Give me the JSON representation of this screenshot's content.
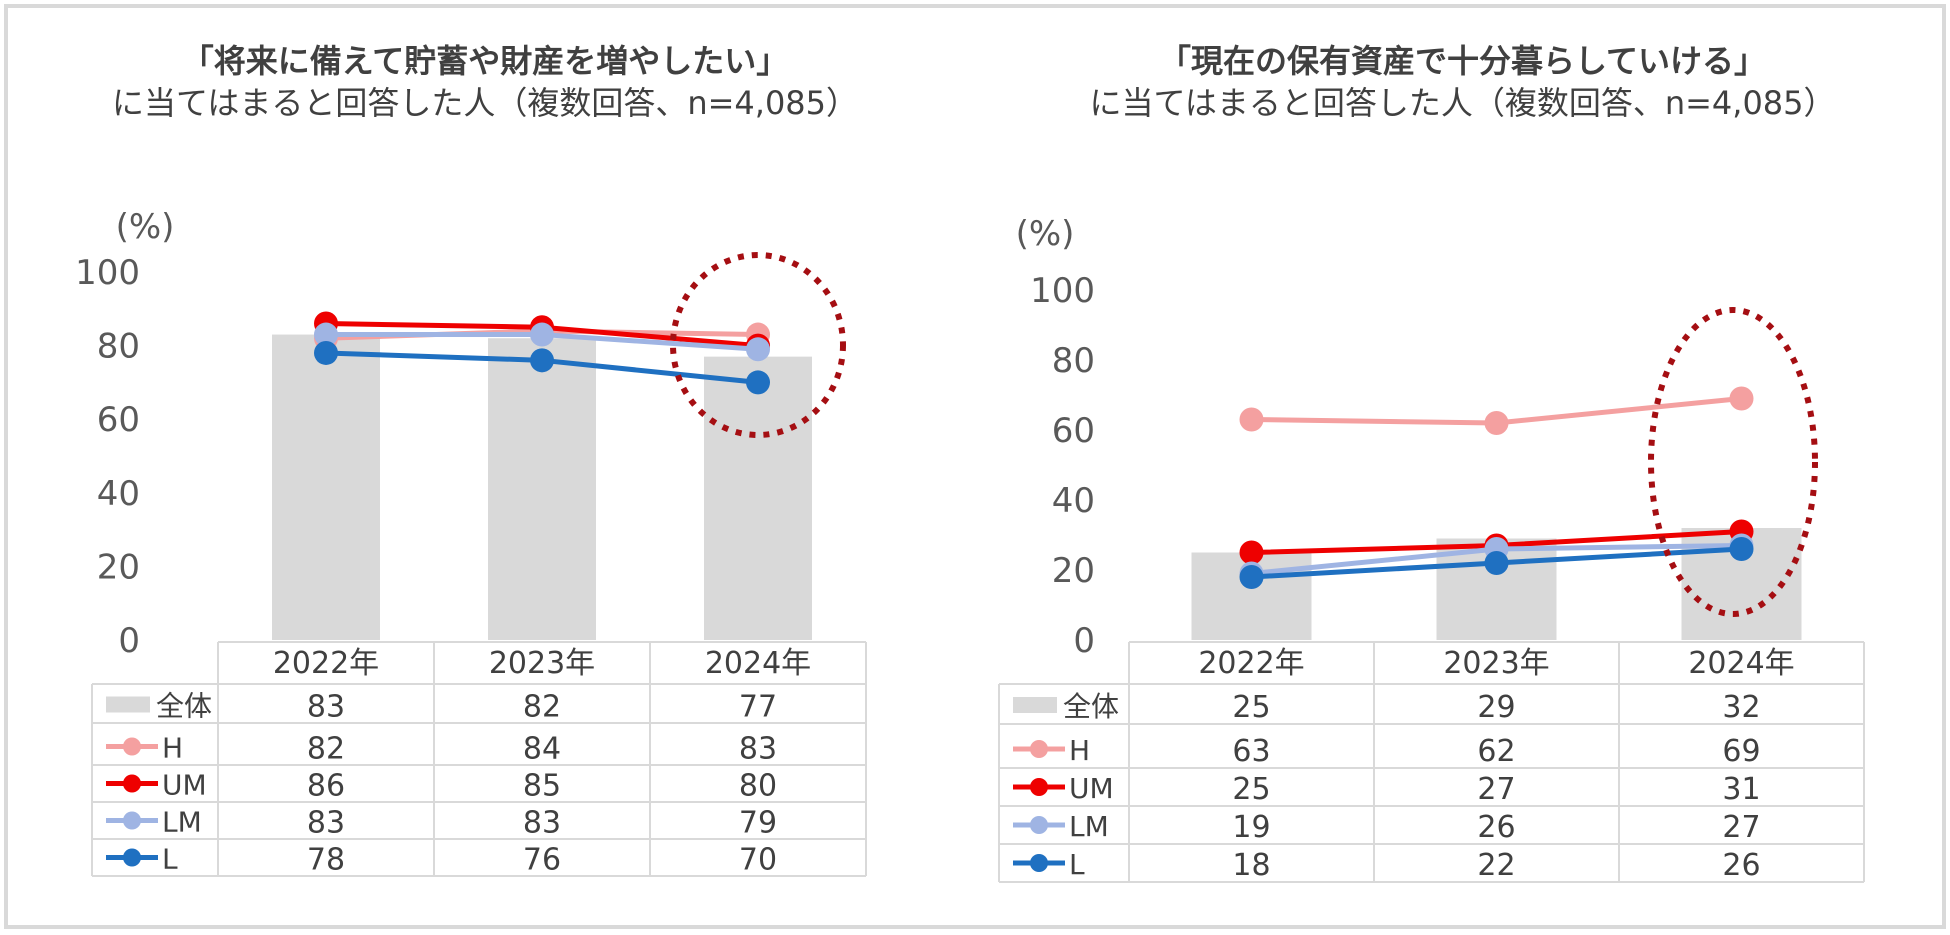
{
  "chart_data": [
    {
      "type": "bar",
      "title": "「将来に備えて貯蓄や財産を増やしたい」",
      "subtitle": "に当てはまると回答した人（複数回答、n=4,085）",
      "ylabel": "(%)",
      "ylim": [
        0,
        100
      ],
      "yticks": [
        "0",
        "20",
        "40",
        "60",
        "80",
        "100"
      ],
      "categories": [
        "2022年",
        "2023年",
        "2024年"
      ],
      "bar_series": {
        "name": "全体",
        "values": [
          83,
          82,
          77
        ],
        "color": "#d9d9d9"
      },
      "line_series": [
        {
          "name": "H",
          "values": [
            82,
            84,
            83
          ],
          "color": "#f4a0a0"
        },
        {
          "name": "UM",
          "values": [
            86,
            85,
            80
          ],
          "color": "#ee0000"
        },
        {
          "name": "LM",
          "values": [
            83,
            83,
            79
          ],
          "color": "#9fb4e3"
        },
        {
          "name": "L",
          "values": [
            78,
            76,
            70
          ],
          "color": "#1f70c1"
        }
      ],
      "table_rows": [
        {
          "name": "全体",
          "values": [
            "83",
            "82",
            "77"
          ]
        },
        {
          "name": "H",
          "values": [
            "82",
            "84",
            "83"
          ]
        },
        {
          "name": "UM",
          "values": [
            "86",
            "85",
            "80"
          ]
        },
        {
          "name": "LM",
          "values": [
            "83",
            "83",
            "79"
          ]
        },
        {
          "name": "L",
          "values": [
            "78",
            "76",
            "70"
          ]
        }
      ],
      "annotation": {
        "type": "dotted-ellipse",
        "category": "2024年",
        "color": "#a50e12"
      }
    },
    {
      "type": "bar",
      "title": "「現在の保有資産で十分暮らしていける」",
      "subtitle": "に当てはまると回答した人（複数回答、n=4,085）",
      "ylabel": "(%)",
      "ylim": [
        0,
        100
      ],
      "yticks": [
        "0",
        "20",
        "40",
        "60",
        "80",
        "100"
      ],
      "categories": [
        "2022年",
        "2023年",
        "2024年"
      ],
      "bar_series": {
        "name": "全体",
        "values": [
          25,
          29,
          32
        ],
        "color": "#d9d9d9"
      },
      "line_series": [
        {
          "name": "H",
          "values": [
            63,
            62,
            69
          ],
          "color": "#f4a0a0"
        },
        {
          "name": "UM",
          "values": [
            25,
            27,
            31
          ],
          "color": "#ee0000"
        },
        {
          "name": "LM",
          "values": [
            19,
            26,
            27
          ],
          "color": "#9fb4e3"
        },
        {
          "name": "L",
          "values": [
            18,
            22,
            26
          ],
          "color": "#1f70c1"
        }
      ],
      "table_rows": [
        {
          "name": "全体",
          "values": [
            "25",
            "29",
            "32"
          ]
        },
        {
          "name": "H",
          "values": [
            "63",
            "62",
            "69"
          ]
        },
        {
          "name": "UM",
          "values": [
            "25",
            "27",
            "31"
          ]
        },
        {
          "name": "LM",
          "values": [
            "19",
            "26",
            "27"
          ]
        },
        {
          "name": "L",
          "values": [
            "18",
            "22",
            "26"
          ]
        }
      ],
      "annotation": {
        "type": "dotted-ellipse",
        "category": "2024年",
        "color": "#a50e12"
      }
    }
  ]
}
